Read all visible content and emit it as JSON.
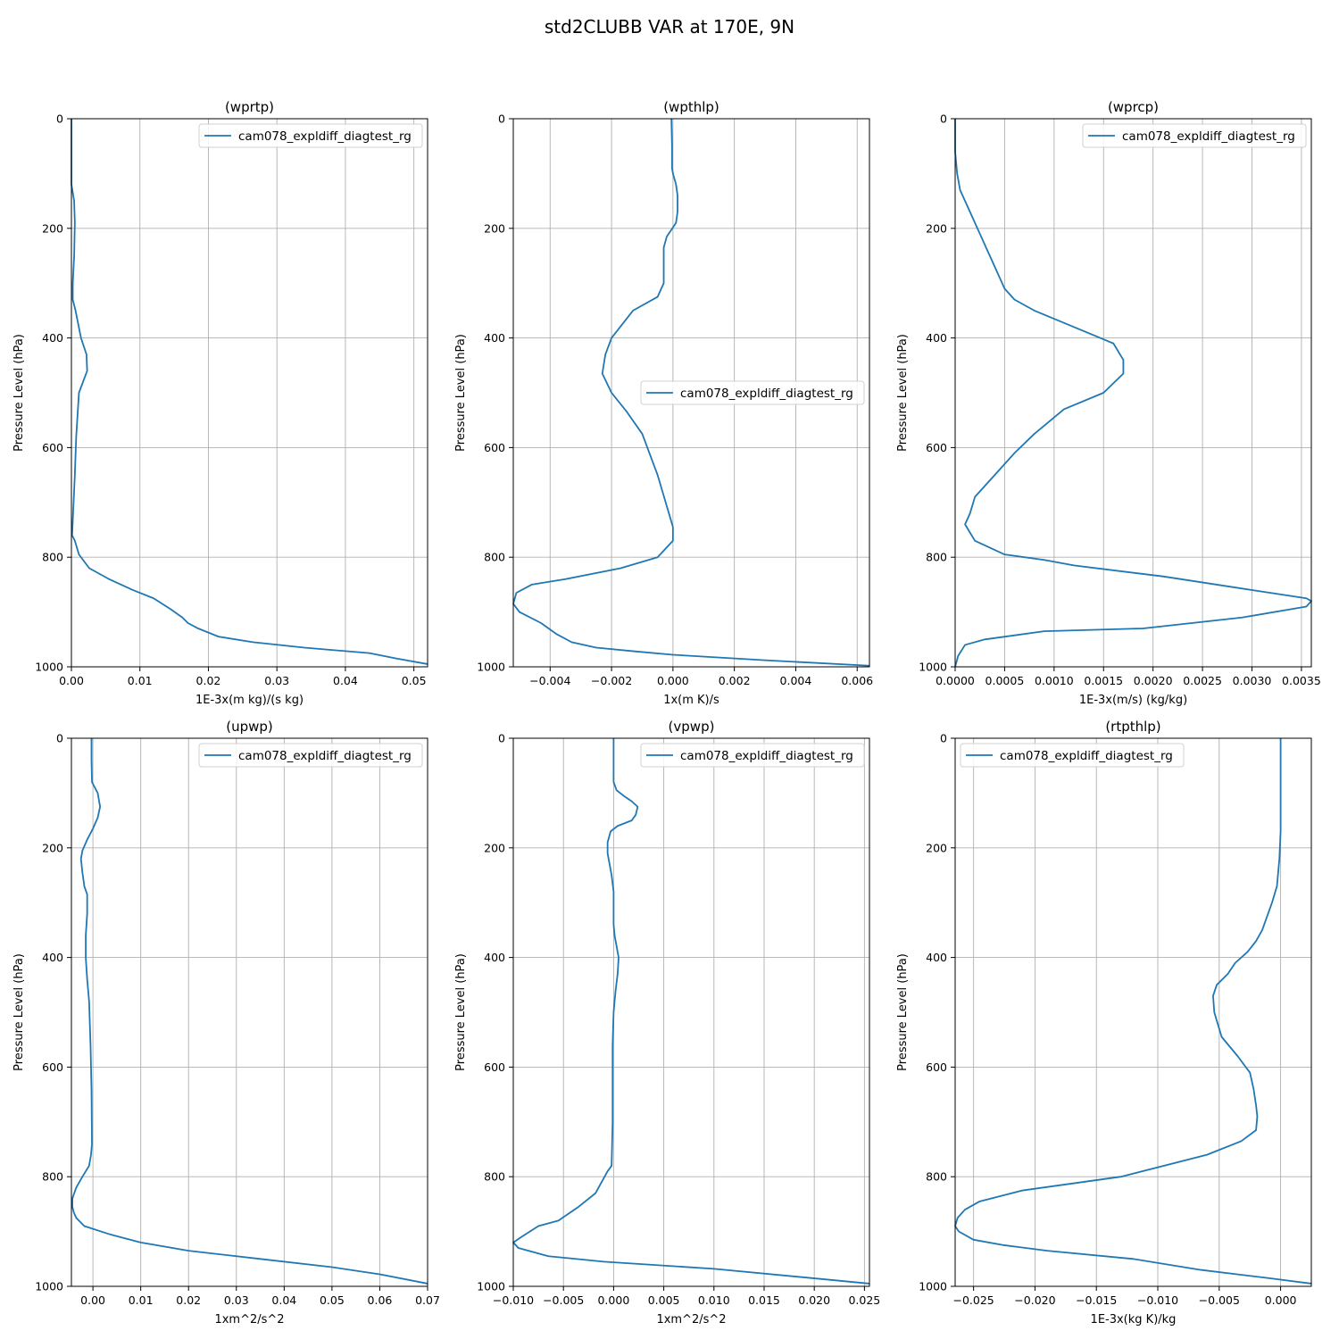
{
  "figure": {
    "title": "std2CLUBB VAR at 170E, 9N"
  },
  "style": {
    "line_color": "#1f77b4"
  },
  "chart_data": [
    {
      "type": "line",
      "title": "(wprtp)",
      "xlabel": "1E-3x(m kg)/(s kg)",
      "ylabel": "Pressure Level (hPa)",
      "xlim": [
        0.0,
        0.052
      ],
      "ylim": [
        1000,
        0
      ],
      "y_inverted": true,
      "xticks": [
        0.0,
        0.01,
        0.02,
        0.03,
        0.04,
        0.05
      ],
      "xtick_labels": [
        "0.00",
        "0.01",
        "0.02",
        "0.03",
        "0.04",
        "0.05"
      ],
      "yticks": [
        0,
        200,
        400,
        600,
        800,
        1000
      ],
      "ytick_labels": [
        "0",
        "200",
        "400",
        "600",
        "800",
        "1000"
      ],
      "grid": true,
      "legend": "top-right",
      "series": [
        {
          "name": "cam078_expldiff_diagtest_rg",
          "x": [
            0.0,
            0.0,
            0.0,
            0.0004,
            0.0005,
            0.0004,
            0.0002,
            0.0002,
            0.0006,
            0.0014,
            0.0022,
            0.0023,
            0.0011,
            0.0007,
            0.0005,
            0.0001,
            0.0005,
            0.0011,
            0.0026,
            0.0055,
            0.009,
            0.012,
            0.0145,
            0.0162,
            0.017,
            0.0185,
            0.0215,
            0.0265,
            0.034,
            0.0435,
            0.0475,
            0.052
          ],
          "y": [
            0,
            60,
            120,
            150,
            190,
            250,
            300,
            330,
            350,
            400,
            430,
            460,
            500,
            580,
            650,
            760,
            770,
            795,
            820,
            840,
            860,
            875,
            895,
            910,
            920,
            930,
            945,
            955,
            965,
            975,
            985,
            995
          ]
        }
      ]
    },
    {
      "type": "line",
      "title": "(wpthlp)",
      "xlabel": "1x(m K)/s",
      "ylabel": "Pressure Level (hPa)",
      "xlim": [
        -0.0052,
        0.0064
      ],
      "ylim": [
        1000,
        0
      ],
      "y_inverted": true,
      "xticks": [
        -0.004,
        -0.002,
        0.0,
        0.002,
        0.004,
        0.006
      ],
      "xtick_labels": [
        "−0.004",
        "−0.002",
        "0.000",
        "0.002",
        "0.004",
        "0.006"
      ],
      "yticks": [
        0,
        200,
        400,
        600,
        800,
        1000
      ],
      "ytick_labels": [
        "0",
        "200",
        "400",
        "600",
        "800",
        "1000"
      ],
      "grid": true,
      "legend": "center-right",
      "series": [
        {
          "name": "cam078_expldiff_diagtest_rg",
          "x": [
            -5e-05,
            -3e-05,
            -3e-05,
            0.0,
            0.0001,
            0.00015,
            0.00015,
            0.0001,
            -0.0002,
            -0.0003,
            -0.0003,
            -0.0003,
            -0.0003,
            -0.0005,
            -0.0013,
            -0.002,
            -0.0022,
            -0.0023,
            -0.002,
            -0.0015,
            -0.001,
            -0.0005,
            0.0,
            0.0,
            -0.0005,
            -0.0017,
            -0.0035,
            -0.0046,
            -0.0051,
            -0.0052,
            -0.005,
            -0.0043,
            -0.0038,
            -0.0033,
            -0.0025,
            -0.0012,
            0.0,
            0.003,
            0.0064
          ],
          "y": [
            0,
            50,
            90,
            100,
            120,
            140,
            170,
            190,
            215,
            235,
            260,
            280,
            300,
            325,
            350,
            400,
            430,
            465,
            500,
            535,
            575,
            650,
            745,
            770,
            800,
            820,
            840,
            850,
            865,
            885,
            900,
            920,
            940,
            955,
            965,
            972,
            978,
            988,
            998
          ]
        }
      ]
    },
    {
      "type": "line",
      "title": "(wprcp)",
      "xlabel": "1E-3x(m/s) (kg/kg)",
      "ylabel": "Pressure Level (hPa)",
      "xlim": [
        0.0,
        0.0036
      ],
      "ylim": [
        1000,
        0
      ],
      "y_inverted": true,
      "xticks": [
        0.0,
        0.0005,
        0.001,
        0.0015,
        0.002,
        0.0025,
        0.003,
        0.0035
      ],
      "xtick_labels": [
        "0.0000",
        "0.0005",
        "0.0010",
        "0.0015",
        "0.0020",
        "0.0025",
        "0.0030",
        "0.0035"
      ],
      "yticks": [
        0,
        200,
        400,
        600,
        800,
        1000
      ],
      "ytick_labels": [
        "0",
        "200",
        "400",
        "600",
        "800",
        "1000"
      ],
      "grid": true,
      "legend": "top-right",
      "series": [
        {
          "name": "cam078_expldiff_diagtest_rg",
          "x": [
            0.0,
            0.0,
            2e-05,
            5e-05,
            0.0001,
            0.00015,
            0.0002,
            0.00025,
            0.0003,
            0.00035,
            0.0004,
            0.00045,
            0.0005,
            0.0006,
            0.0008,
            0.0012,
            0.0016,
            0.0017,
            0.0017,
            0.0015,
            0.0011,
            0.0008,
            0.0006,
            0.0004,
            0.0002,
            0.00015,
            0.0001,
            0.0002,
            0.0005,
            0.0009,
            0.0012,
            0.0021,
            0.003,
            0.00355,
            0.0036,
            0.00355,
            0.0029,
            0.0019,
            0.0009,
            0.0003,
            0.0001,
            3e-05,
            0.0
          ],
          "y": [
            0,
            60,
            100,
            130,
            150,
            170,
            190,
            210,
            230,
            250,
            270,
            290,
            310,
            330,
            350,
            380,
            410,
            440,
            465,
            500,
            530,
            575,
            610,
            650,
            690,
            720,
            740,
            770,
            795,
            805,
            815,
            835,
            860,
            875,
            880,
            890,
            910,
            930,
            935,
            950,
            960,
            980,
            1000
          ]
        }
      ]
    },
    {
      "type": "line",
      "title": "(upwp)",
      "xlabel": "1xm^2/s^2",
      "ylabel": "Pressure Level (hPa)",
      "xlim": [
        -0.0045,
        0.07
      ],
      "ylim": [
        1000,
        0
      ],
      "y_inverted": true,
      "xticks": [
        0.0,
        0.01,
        0.02,
        0.03,
        0.04,
        0.05,
        0.06,
        0.07
      ],
      "xtick_labels": [
        "0.00",
        "0.01",
        "0.02",
        "0.03",
        "0.04",
        "0.05",
        "0.06",
        "0.07"
      ],
      "yticks": [
        0,
        200,
        400,
        600,
        800,
        1000
      ],
      "ytick_labels": [
        "0",
        "200",
        "400",
        "600",
        "800",
        "1000"
      ],
      "grid": true,
      "legend": "top-right",
      "series": [
        {
          "name": "cam078_expldiff_diagtest_rg",
          "x": [
            -0.0003,
            -0.0003,
            -0.0002,
            0.001,
            0.0015,
            0.001,
            0.0,
            -0.0012,
            -0.0022,
            -0.0025,
            -0.0022,
            -0.0018,
            -0.0012,
            -0.0012,
            -0.0015,
            -0.0015,
            -0.0012,
            -0.0008,
            -0.0005,
            -0.0003,
            -0.0002,
            -0.0004,
            -0.0008,
            -0.0022,
            -0.0035,
            -0.0043,
            -0.0043,
            -0.004,
            -0.0035,
            -0.0018,
            0.0035,
            0.01,
            0.02,
            0.035,
            0.05,
            0.06,
            0.07
          ],
          "y": [
            0,
            40,
            80,
            100,
            125,
            145,
            165,
            185,
            205,
            220,
            245,
            270,
            285,
            320,
            360,
            400,
            440,
            480,
            560,
            640,
            740,
            760,
            780,
            800,
            820,
            840,
            855,
            865,
            875,
            890,
            905,
            920,
            935,
            950,
            965,
            978,
            995
          ]
        }
      ]
    },
    {
      "type": "line",
      "title": "(vpwp)",
      "xlabel": "1xm^2/s^2",
      "ylabel": "Pressure Level (hPa)",
      "xlim": [
        -0.01,
        0.0255
      ],
      "ylim": [
        1000,
        0
      ],
      "y_inverted": true,
      "xticks": [
        -0.01,
        -0.005,
        0.0,
        0.005,
        0.01,
        0.015,
        0.02,
        0.025
      ],
      "xtick_labels": [
        "−0.010",
        "−0.005",
        "0.000",
        "0.005",
        "0.010",
        "0.015",
        "0.020",
        "0.025"
      ],
      "yticks": [
        0,
        200,
        400,
        600,
        800,
        1000
      ],
      "ytick_labels": [
        "0",
        "200",
        "400",
        "600",
        "800",
        "1000"
      ],
      "grid": true,
      "legend": "top-right",
      "series": [
        {
          "name": "cam078_expldiff_diagtest_rg",
          "x": [
            0.0,
            0.0,
            0.0,
            0.0003,
            0.001,
            0.0018,
            0.0024,
            0.0022,
            0.0018,
            0.0004,
            -0.0003,
            -0.0006,
            -0.0006,
            -0.0004,
            -0.0002,
            0.0,
            0.0,
            0.0,
            0.0001,
            0.0003,
            0.0005,
            0.0004,
            0.0002,
            0.0,
            -0.0001,
            -0.0001,
            -0.0001,
            -0.0002,
            -0.0006,
            -0.0012,
            -0.0018,
            -0.0035,
            -0.0055,
            -0.0075,
            -0.0092,
            -0.01,
            -0.0095,
            -0.0065,
            -0.001,
            0.01,
            0.0255
          ],
          "y": [
            0,
            40,
            80,
            95,
            105,
            115,
            125,
            140,
            150,
            160,
            170,
            190,
            210,
            230,
            250,
            280,
            300,
            340,
            360,
            380,
            400,
            430,
            460,
            500,
            560,
            620,
            700,
            780,
            790,
            810,
            830,
            855,
            880,
            890,
            910,
            920,
            930,
            945,
            955,
            968,
            995
          ]
        }
      ]
    },
    {
      "type": "line",
      "title": "(rtpthlp)",
      "xlabel": "1E-3x(kg K)/kg",
      "ylabel": "Pressure Level (hPa)",
      "xlim": [
        -0.0265,
        0.0025
      ],
      "ylim": [
        1000,
        0
      ],
      "y_inverted": true,
      "xticks": [
        -0.025,
        -0.02,
        -0.015,
        -0.01,
        -0.005,
        0.0
      ],
      "xtick_labels": [
        "−0.025",
        "−0.020",
        "−0.015",
        "−0.010",
        "−0.005",
        "0.000"
      ],
      "yticks": [
        0,
        200,
        400,
        600,
        800,
        1000
      ],
      "ytick_labels": [
        "0",
        "200",
        "400",
        "600",
        "800",
        "1000"
      ],
      "grid": true,
      "legend": "top-left",
      "series": [
        {
          "name": "cam078_expldiff_diagtest_rg",
          "x": [
            0.0,
            0.0,
            0.0,
            -0.0001,
            -0.0003,
            -0.0007,
            -0.0011,
            -0.0015,
            -0.002,
            -0.0027,
            -0.0037,
            -0.0043,
            -0.0052,
            -0.0055,
            -0.0054,
            -0.0048,
            -0.0035,
            -0.0025,
            -0.0022,
            -0.002,
            -0.0019,
            -0.002,
            -0.0032,
            -0.006,
            -0.013,
            -0.021,
            -0.0245,
            -0.0257,
            -0.0263,
            -0.0265,
            -0.0262,
            -0.025,
            -0.0225,
            -0.019,
            -0.012,
            -0.0065,
            -0.001,
            0.0025
          ],
          "y": [
            0,
            100,
            170,
            220,
            270,
            300,
            325,
            350,
            370,
            390,
            410,
            430,
            450,
            470,
            500,
            545,
            580,
            610,
            640,
            670,
            690,
            715,
            735,
            760,
            800,
            825,
            845,
            860,
            875,
            890,
            900,
            915,
            925,
            935,
            950,
            970,
            985,
            995
          ]
        }
      ]
    }
  ]
}
